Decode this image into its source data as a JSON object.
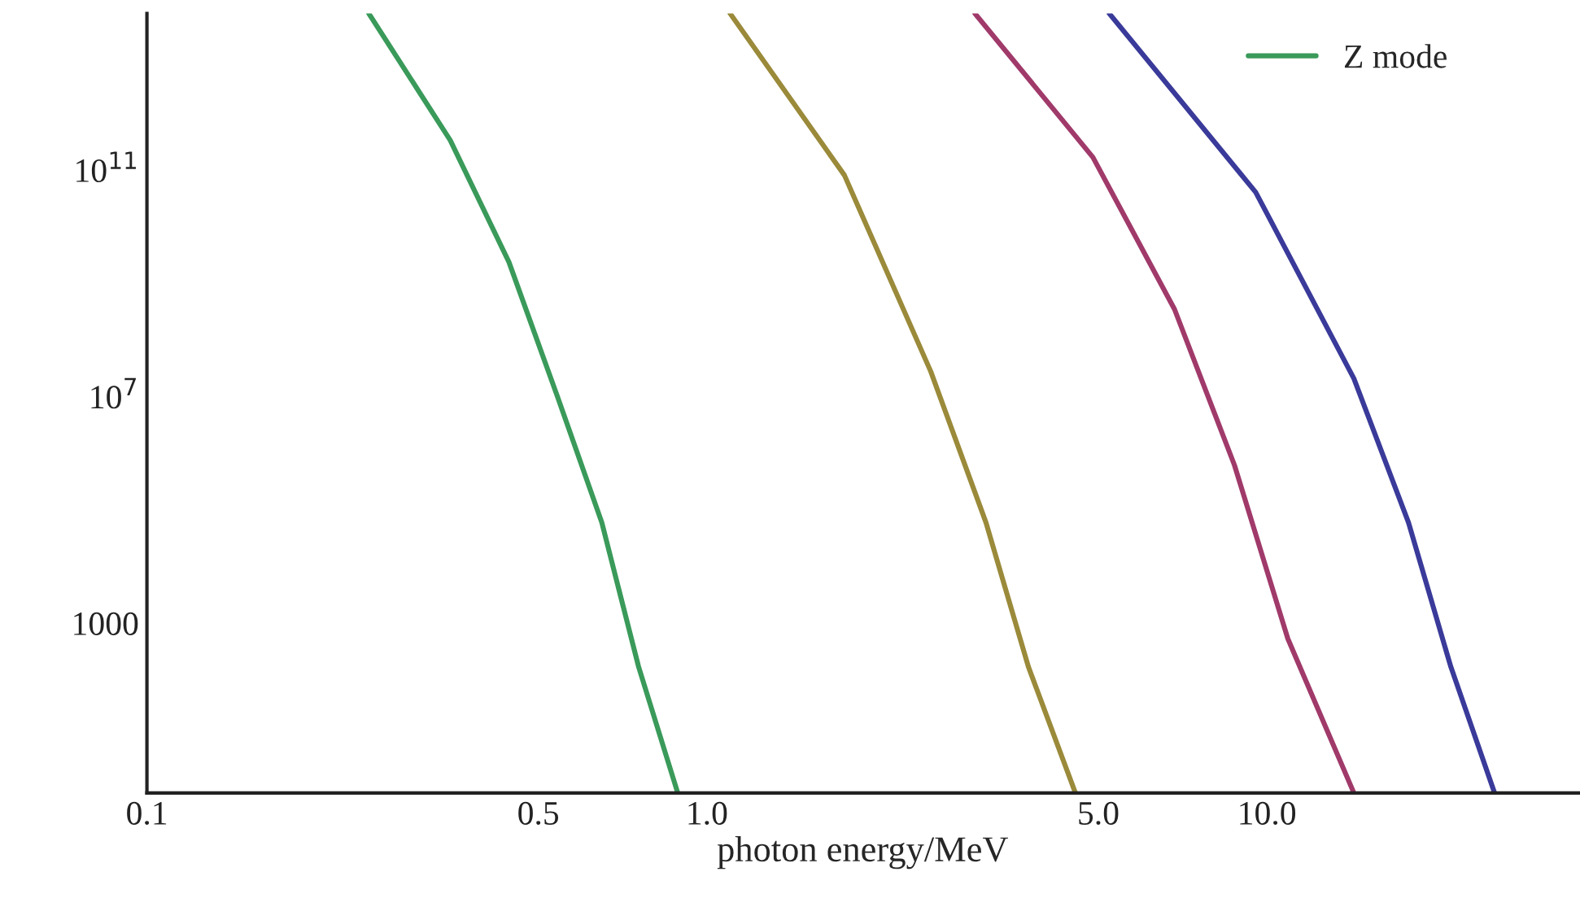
{
  "chart_data": {
    "type": "line",
    "xlabel": "photon energy/MeV",
    "log": "xy",
    "xlim": [
      0.1,
      36
    ],
    "ylim": [
      1,
      59000000000000.0
    ],
    "xticks": [
      0.1,
      0.5,
      {
        "value": 1,
        "label": "1.0"
      },
      {
        "value": 5,
        "label": "5.0"
      },
      {
        "value": 10,
        "label": "10.0"
      }
    ],
    "yticks": [
      1000,
      {
        "value": 10000000.0,
        "label": "10$^{7}$"
      },
      {
        "value": 100000000000.0,
        "label": "10$^{11}$"
      }
    ],
    "legend": "top right",
    "grid": false,
    "series": [
      {
        "name": "Z mode",
        "color": "#3a9a5a",
        "x": [
          0.249,
          0.348,
          0.443,
          0.541,
          0.649,
          0.755,
          0.887
        ],
        "values": [
          59000000000000.0,
          340000000000.0,
          2400000000.0,
          10000000.0,
          60000.0,
          170,
          1
        ]
      },
      {
        "color": "#9a8a3a",
        "x": [
          1.1,
          1.76,
          2.51,
          3.15,
          3.75,
          4.55
        ],
        "values": [
          59000000000000.0,
          82000000000.0,
          28000000.0,
          60000.0,
          170,
          1
        ]
      },
      {
        "color": "#a03a6a",
        "x": [
          3.01,
          4.89,
          6.84,
          8.75,
          10.9,
          14.3
        ],
        "values": [
          59000000000000.0,
          170000000000.0,
          350000000.0,
          620000.0,
          530,
          1
        ]
      },
      {
        "color": "#3a3a9a",
        "x": [
          5.23,
          9.55,
          14.3,
          17.9,
          21.3,
          25.5
        ],
        "values": [
          59000000000000.0,
          41000000000.0,
          21000000.0,
          60000.0,
          170,
          1
        ]
      }
    ]
  }
}
